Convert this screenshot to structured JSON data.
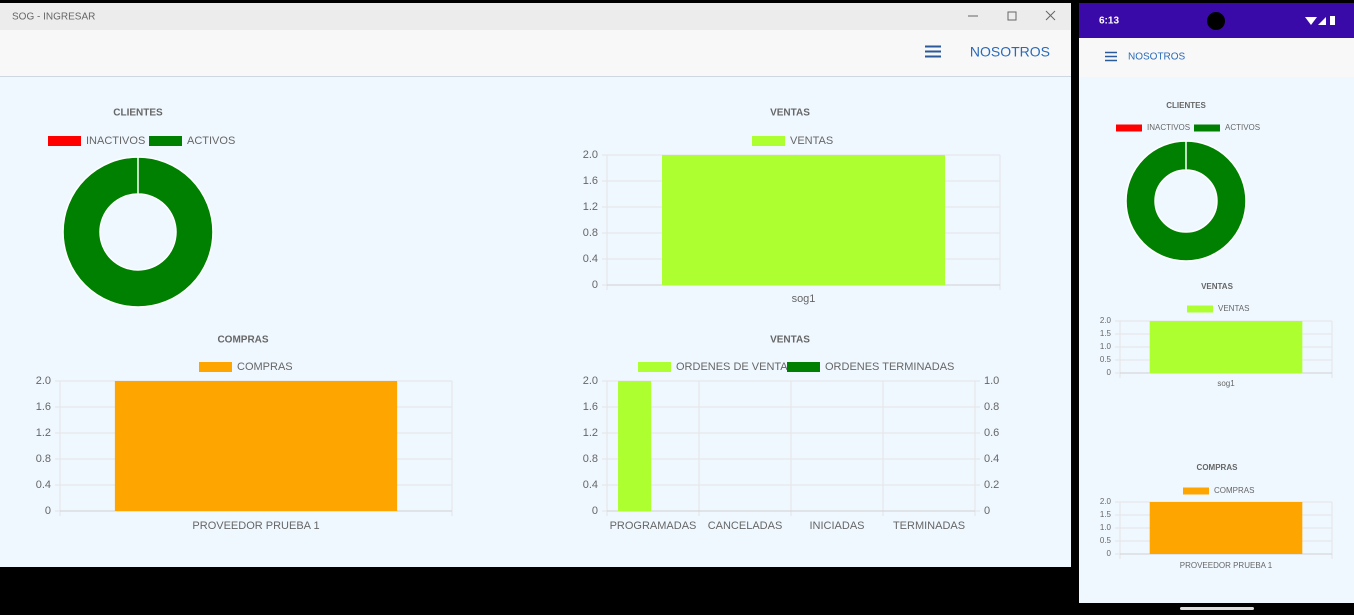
{
  "window": {
    "title": "SOG - INGRESAR",
    "nav": "NOSOTROS"
  },
  "desktop": {
    "charts": [
      {
        "type": "doughnut",
        "title": "CLIENTES",
        "categories": [
          "INACTIVOS",
          "ACTIVOS"
        ],
        "values": [
          0,
          1
        ],
        "colors": [
          "#ff0000",
          "#008000"
        ]
      },
      {
        "type": "bar",
        "title": "VENTAS",
        "categories": [
          "sog1"
        ],
        "series": [
          {
            "name": "VENTAS",
            "color": "#adff2f",
            "values": [
              2
            ]
          }
        ],
        "ylim": [
          0,
          2
        ],
        "yticks": [
          0,
          0.4,
          0.8,
          1.2,
          1.6,
          {
            "value": 2,
            "label": "2.0"
          }
        ],
        "grid": true
      },
      {
        "type": "bar",
        "title": "COMPRAS",
        "categories": [
          "PROVEEDOR PRUEBA 1"
        ],
        "series": [
          {
            "name": "COMPRAS",
            "color": "#ffa500",
            "values": [
              2
            ]
          }
        ],
        "ylim": [
          0,
          2
        ],
        "yticks": [
          0,
          0.4,
          0.8,
          1.2,
          1.6,
          {
            "value": 2,
            "label": "2.0"
          }
        ],
        "grid": true
      },
      {
        "type": "bar",
        "title": "VENTAS",
        "categories": [
          "PROGRAMADAS",
          "CANCELADAS",
          "INICIADAS",
          "TERMINADAS"
        ],
        "series": [
          {
            "name": "ORDENES DE VENTA",
            "color": "#adff2f",
            "values": [
              2,
              0,
              0,
              0
            ]
          },
          {
            "name": "ORDENES TERMINADAS",
            "color": "#008000",
            "values": [
              0,
              0,
              0,
              0
            ],
            "axis": "y2"
          }
        ],
        "ylim": [
          0,
          2
        ],
        "yticks": [
          0,
          0.4,
          0.8,
          1.2,
          1.6,
          {
            "value": 2,
            "label": "2.0"
          }
        ],
        "y2lim": [
          0,
          1
        ],
        "y2ticks": [
          0,
          0.2,
          0.4,
          0.6,
          0.8,
          {
            "value": 1,
            "label": "1.0"
          }
        ],
        "grid": true
      }
    ]
  },
  "phone": {
    "time": "6:13",
    "nav": "NOSOTROS",
    "charts": [
      {
        "type": "doughnut",
        "title": "CLIENTES",
        "categories": [
          "INACTIVOS",
          "ACTIVOS"
        ],
        "values": [
          0,
          1
        ],
        "colors": [
          "#ff0000",
          "#008000"
        ]
      },
      {
        "type": "bar",
        "title": "VENTAS",
        "categories": [
          "sog1"
        ],
        "series": [
          {
            "name": "VENTAS",
            "color": "#adff2f",
            "values": [
              2
            ]
          }
        ],
        "ylim": [
          0,
          2
        ],
        "yticks": [
          0,
          0.5,
          {
            "value": 1,
            "label": "1.0"
          },
          1.5,
          {
            "value": 2,
            "label": "2.0"
          }
        ],
        "grid": true
      },
      {
        "type": "bar",
        "title": "COMPRAS",
        "categories": [
          "PROVEEDOR PRUEBA 1"
        ],
        "series": [
          {
            "name": "COMPRAS",
            "color": "#ffa500",
            "values": [
              2
            ]
          }
        ],
        "ylim": [
          0,
          2
        ],
        "yticks": [
          0,
          0.5,
          {
            "value": 1,
            "label": "1.0"
          },
          1.5,
          {
            "value": 2,
            "label": "2.0"
          }
        ],
        "grid": true
      }
    ]
  }
}
